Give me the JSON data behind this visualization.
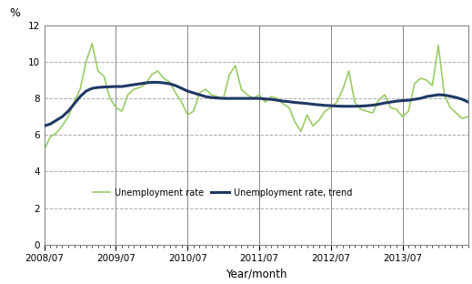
{
  "title": "",
  "ylabel": "%",
  "xlabel": "Year/month",
  "ylim": [
    0,
    12
  ],
  "background_color": "#ffffff",
  "grid_color": "#aaaaaa",
  "unemployment_color": "#99cc66",
  "trend_color": "#1f3864",
  "unemployment_lw": 1.2,
  "trend_lw": 2.2,
  "xtick_labels": [
    "2008/07",
    "2009/07",
    "2010/07",
    "2011/07",
    "2012/07",
    "2013/07"
  ],
  "unemployment_rate": [
    5.2,
    5.9,
    6.1,
    6.5,
    7.0,
    7.8,
    8.5,
    10.0,
    11.0,
    9.5,
    9.2,
    8.0,
    7.5,
    7.3,
    8.2,
    8.5,
    8.6,
    8.8,
    9.3,
    9.5,
    9.1,
    8.9,
    8.3,
    7.8,
    7.1,
    7.3,
    8.3,
    8.5,
    8.2,
    8.1,
    8.0,
    9.3,
    9.8,
    8.5,
    8.2,
    8.0,
    8.2,
    7.8,
    8.1,
    8.0,
    7.7,
    7.5,
    6.7,
    6.2,
    7.1,
    6.5,
    6.8,
    7.3,
    7.5,
    7.8,
    8.5,
    9.5,
    7.8,
    7.4,
    7.3,
    7.2,
    7.9,
    8.2,
    7.5,
    7.4,
    7.0,
    7.3,
    8.8,
    9.1,
    9.0,
    8.7,
    10.9,
    8.2,
    7.5,
    7.2,
    6.9,
    7.0
  ],
  "trend_rate": [
    6.5,
    6.6,
    6.8,
    7.0,
    7.3,
    7.7,
    8.1,
    8.4,
    8.55,
    8.6,
    8.62,
    8.64,
    8.65,
    8.65,
    8.7,
    8.75,
    8.8,
    8.85,
    8.88,
    8.88,
    8.85,
    8.8,
    8.7,
    8.55,
    8.4,
    8.3,
    8.2,
    8.1,
    8.05,
    8.02,
    8.0,
    8.0,
    8.0,
    8.0,
    8.0,
    8.0,
    8.0,
    7.97,
    7.95,
    7.9,
    7.85,
    7.82,
    7.78,
    7.75,
    7.72,
    7.68,
    7.65,
    7.62,
    7.6,
    7.58,
    7.57,
    7.57,
    7.57,
    7.58,
    7.6,
    7.63,
    7.68,
    7.75,
    7.8,
    7.85,
    7.88,
    7.9,
    7.95,
    8.0,
    8.1,
    8.15,
    8.2,
    8.18,
    8.12,
    8.05,
    7.95,
    7.8
  ],
  "vline_positions": [
    12,
    24,
    36,
    48,
    60
  ],
  "vline_color": "#888888",
  "spine_color": "#888888"
}
